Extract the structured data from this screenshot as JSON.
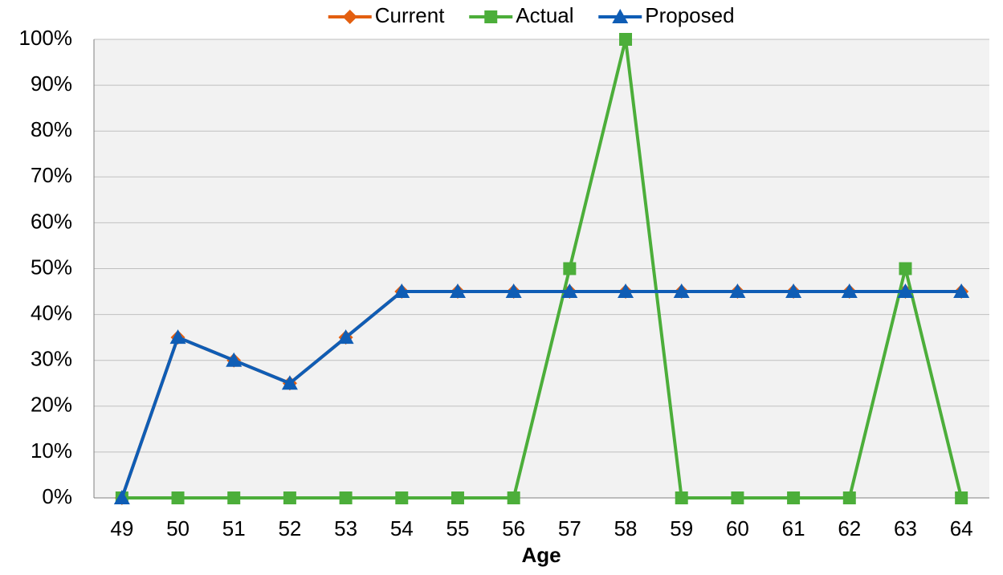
{
  "chart_data": {
    "type": "line",
    "x_label": "Age",
    "categories": [
      "49",
      "50",
      "51",
      "52",
      "53",
      "54",
      "55",
      "56",
      "57",
      "58",
      "59",
      "60",
      "61",
      "62",
      "63",
      "64"
    ],
    "series": [
      {
        "name": "Current",
        "color": "#e35f10",
        "marker": "diamond",
        "values": [
          0,
          35,
          30,
          25,
          35,
          45,
          45,
          45,
          45,
          45,
          45,
          45,
          45,
          45,
          45,
          45
        ]
      },
      {
        "name": "Actual",
        "color": "#4cae3a",
        "marker": "square",
        "values": [
          0,
          0,
          0,
          0,
          0,
          0,
          0,
          0,
          50,
          100,
          0,
          0,
          0,
          0,
          50,
          0
        ]
      },
      {
        "name": "Proposed",
        "color": "#0f5db5",
        "marker": "triangle",
        "values": [
          0,
          35,
          30,
          25,
          35,
          45,
          45,
          45,
          45,
          45,
          45,
          45,
          45,
          45,
          45,
          45
        ]
      }
    ],
    "ylim": [
      0,
      100
    ],
    "yticks": [
      {
        "value": 0,
        "label": "0%"
      },
      {
        "value": 10,
        "label": "10%"
      },
      {
        "value": 20,
        "label": "20%"
      },
      {
        "value": 30,
        "label": "30%"
      },
      {
        "value": 40,
        "label": "40%"
      },
      {
        "value": 50,
        "label": "50%"
      },
      {
        "value": 60,
        "label": "60%"
      },
      {
        "value": 70,
        "label": "70%"
      },
      {
        "value": 80,
        "label": "80%"
      },
      {
        "value": 90,
        "label": "90%"
      },
      {
        "value": 100,
        "label": "100%"
      }
    ],
    "grid": true,
    "legend": "top"
  }
}
